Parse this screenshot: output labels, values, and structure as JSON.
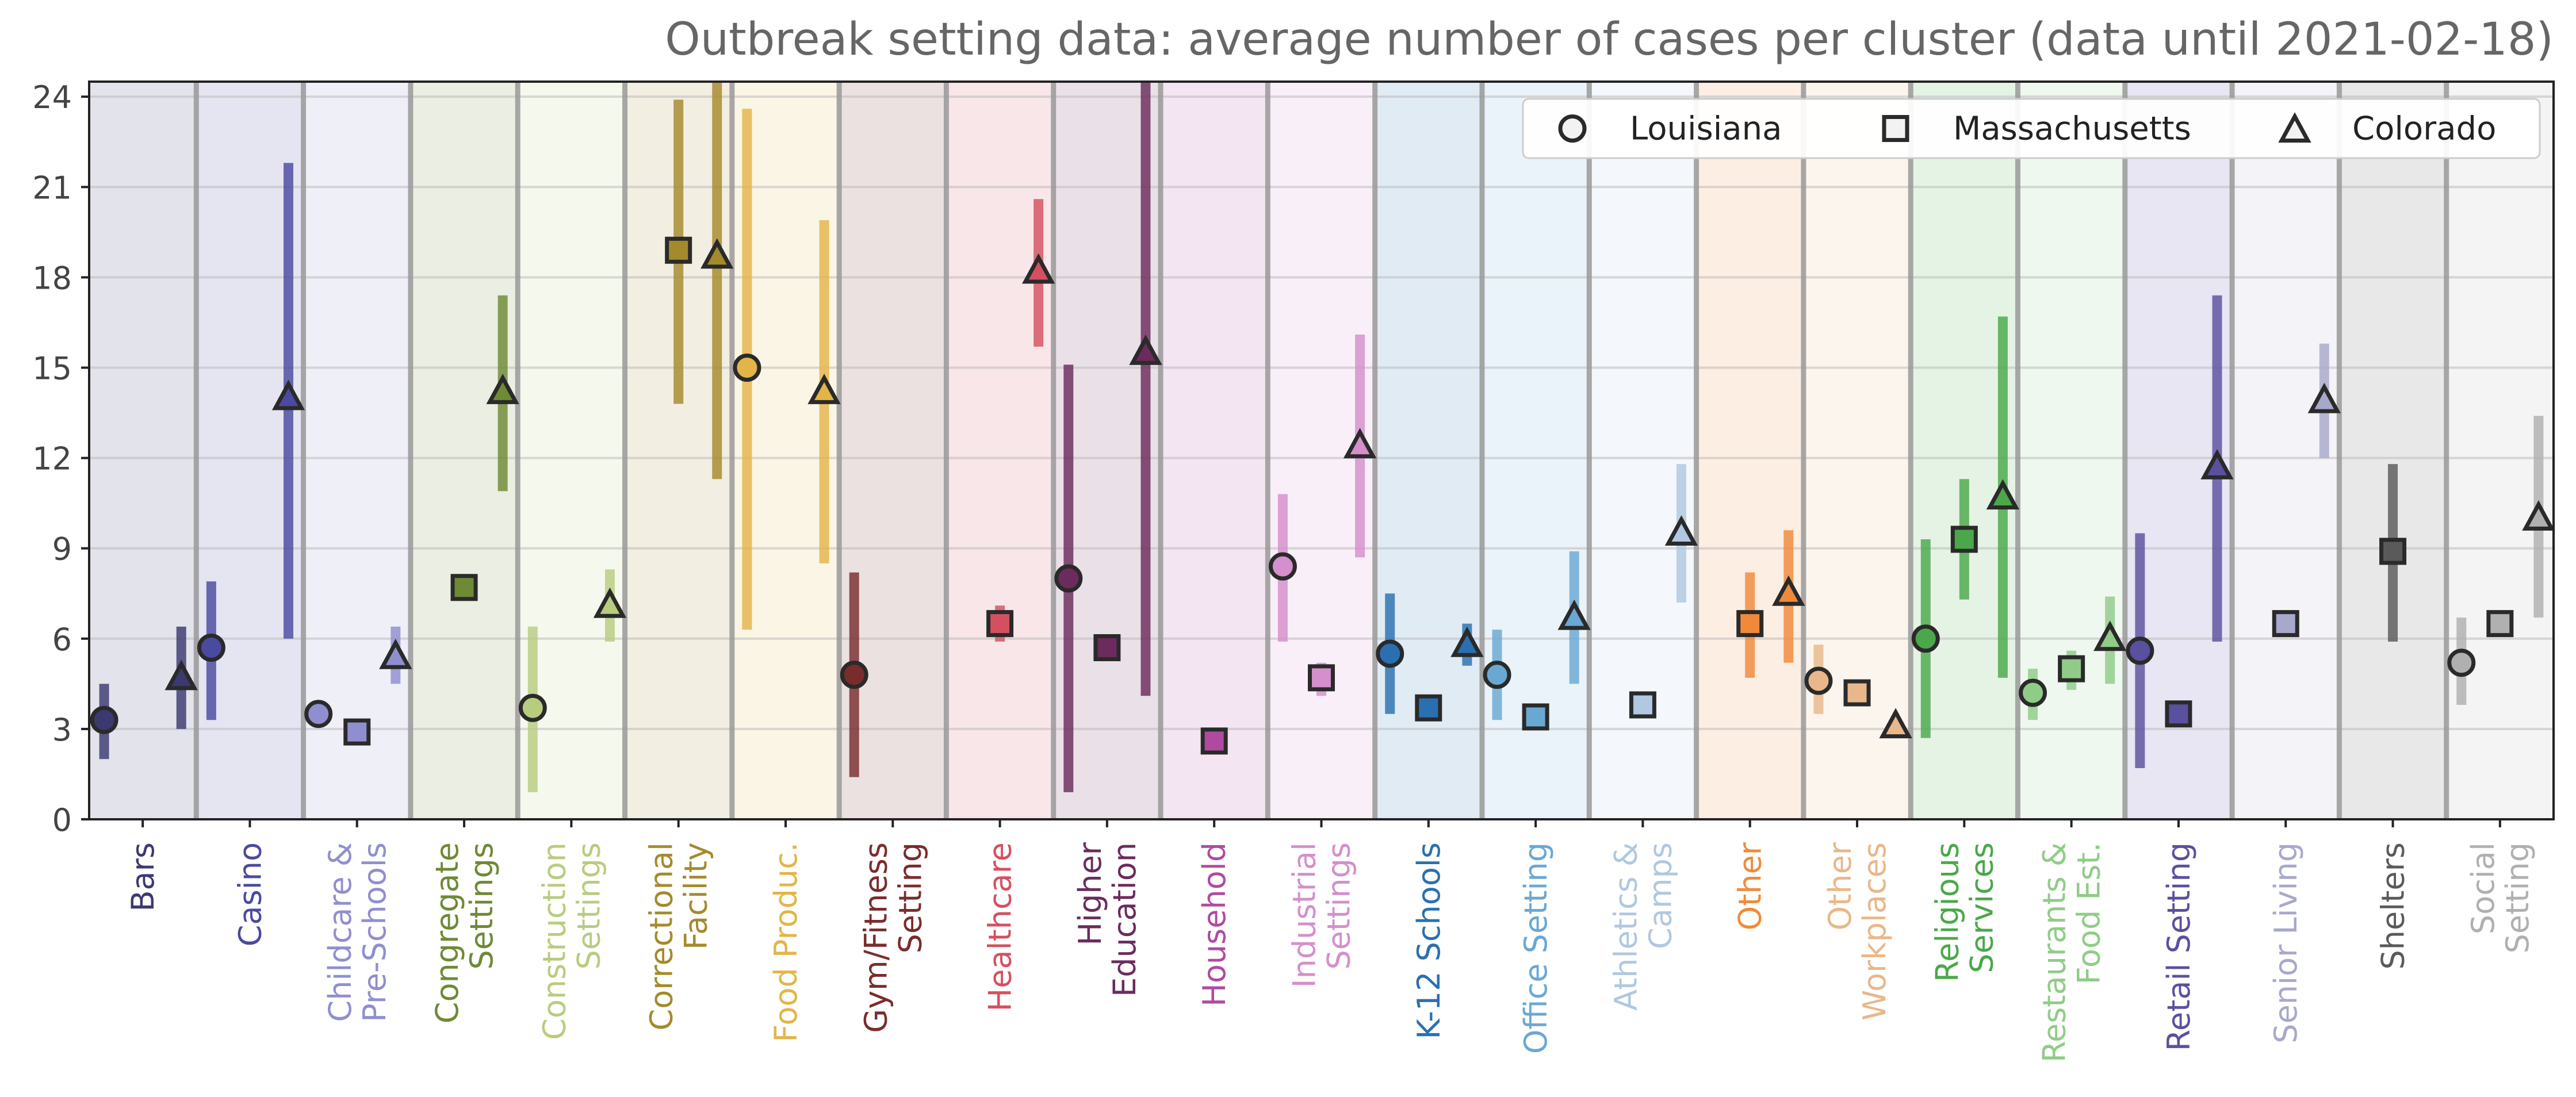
{
  "chart_data": {
    "type": "scatter",
    "title": "Outbreak setting data: average number of cases per cluster (data until 2021-02-18)",
    "ylim": [
      0,
      24.5
    ],
    "yticks": [
      0,
      3,
      6,
      9,
      12,
      15,
      18,
      21,
      24
    ],
    "grid": true,
    "legend_position": "top-right",
    "legend": [
      {
        "name": "Louisiana",
        "marker": "circle"
      },
      {
        "name": "Massachusetts",
        "marker": "square"
      },
      {
        "name": "Colorado",
        "marker": "triangle"
      }
    ],
    "categories": [
      {
        "label": "Bars",
        "color": "#3c3970"
      },
      {
        "label": "Casino",
        "color": "#4a4aa0"
      },
      {
        "label": "Childcare &\nPre-Schools",
        "color": "#8f8fd0"
      },
      {
        "label": "Congregate\nSettings",
        "color": "#6e8a35"
      },
      {
        "label": "Construction\nSettings",
        "color": "#b8cc80"
      },
      {
        "label": "Correctional\nFacility",
        "color": "#a58a2c"
      },
      {
        "label": "Food Produc.",
        "color": "#e3b548"
      },
      {
        "label": "Gym/Fitness\nSetting",
        "color": "#7a2c2c"
      },
      {
        "label": "Healthcare",
        "color": "#d45060"
      },
      {
        "label": "Higher\nEducation",
        "color": "#6b2b5c"
      },
      {
        "label": "Household",
        "color": "#b04aa0"
      },
      {
        "label": "Industrial\nSettings",
        "color": "#d48fcc"
      },
      {
        "label": "K-12 Schools",
        "color": "#2a70b0"
      },
      {
        "label": "Office Setting",
        "color": "#6aa8d4"
      },
      {
        "label": "Athletics &\nCamps",
        "color": "#b0c8e0"
      },
      {
        "label": "Other",
        "color": "#f08a3a"
      },
      {
        "label": "Other\nWorkplaces",
        "color": "#e8b88a"
      },
      {
        "label": "Religious\nServices",
        "color": "#4aa84a"
      },
      {
        "label": "Restaurants &\nFood Est.",
        "color": "#90cc88"
      },
      {
        "label": "Retail Setting",
        "color": "#5a50a0"
      },
      {
        "label": "Senior Living",
        "color": "#a8a8cc"
      },
      {
        "label": "Shelters",
        "color": "#5a5a5a"
      },
      {
        "label": "Social\nSetting",
        "color": "#b0b0b0"
      }
    ],
    "series": [
      {
        "name": "Louisiana",
        "marker": "circle",
        "points": [
          {
            "category": "Bars",
            "value": 3.3,
            "low": 2.0,
            "high": 4.5
          },
          {
            "category": "Casino",
            "value": 5.7,
            "low": 3.3,
            "high": 7.9
          },
          {
            "category": "Childcare &\nPre-Schools",
            "value": 3.5,
            "low": null,
            "high": null
          },
          {
            "category": "Construction\nSettings",
            "value": 3.7,
            "low": 0.9,
            "high": 6.4
          },
          {
            "category": "Food Produc.",
            "value": 15.0,
            "low": 6.3,
            "high": 23.6
          },
          {
            "category": "Gym/Fitness\nSetting",
            "value": 4.8,
            "low": 1.4,
            "high": 8.2
          },
          {
            "category": "Higher\nEducation",
            "value": 8.0,
            "low": 0.9,
            "high": 15.1
          },
          {
            "category": "Industrial\nSettings",
            "value": 8.4,
            "low": 5.9,
            "high": 10.8
          },
          {
            "category": "K-12 Schools",
            "value": 5.5,
            "low": 3.5,
            "high": 7.5
          },
          {
            "category": "Office Setting",
            "value": 4.8,
            "low": 3.3,
            "high": 6.3
          },
          {
            "category": "Other\nWorkplaces",
            "value": 4.6,
            "low": 3.5,
            "high": 5.8
          },
          {
            "category": "Religious\nServices",
            "value": 6.0,
            "low": 2.7,
            "high": 9.3
          },
          {
            "category": "Restaurants &\nFood Est.",
            "value": 4.2,
            "low": 3.3,
            "high": 5.0
          },
          {
            "category": "Retail Setting",
            "value": 5.6,
            "low": 1.7,
            "high": 9.5
          },
          {
            "category": "Social\nSetting",
            "value": 5.2,
            "low": 3.8,
            "high": 6.7
          }
        ]
      },
      {
        "name": "Massachusetts",
        "marker": "square",
        "points": [
          {
            "category": "Childcare &\nPre-Schools",
            "value": 2.9,
            "low": null,
            "high": null
          },
          {
            "category": "Congregate\nSettings",
            "value": 7.7,
            "low": null,
            "high": null
          },
          {
            "category": "Correctional\nFacility",
            "value": 18.9,
            "low": 13.8,
            "high": 23.9
          },
          {
            "category": "Healthcare",
            "value": 6.5,
            "low": 5.9,
            "high": 7.1
          },
          {
            "category": "Higher\nEducation",
            "value": 5.7,
            "low": null,
            "high": null
          },
          {
            "category": "Household",
            "value": 2.6,
            "low": null,
            "high": null
          },
          {
            "category": "Industrial\nSettings",
            "value": 4.7,
            "low": 4.1,
            "high": 5.2
          },
          {
            "category": "K-12 Schools",
            "value": 3.7,
            "low": null,
            "high": null
          },
          {
            "category": "Office Setting",
            "value": 3.4,
            "low": null,
            "high": null
          },
          {
            "category": "Athletics &\nCamps",
            "value": 3.8,
            "low": null,
            "high": null
          },
          {
            "category": "Other",
            "value": 6.5,
            "low": 4.7,
            "high": 8.2
          },
          {
            "category": "Other\nWorkplaces",
            "value": 4.2,
            "low": null,
            "high": null
          },
          {
            "category": "Religious\nServices",
            "value": 9.3,
            "low": 7.3,
            "high": 11.3
          },
          {
            "category": "Restaurants &\nFood Est.",
            "value": 5.0,
            "low": 4.3,
            "high": 5.6
          },
          {
            "category": "Retail Setting",
            "value": 3.5,
            "low": null,
            "high": null
          },
          {
            "category": "Senior Living",
            "value": 6.5,
            "low": null,
            "high": null
          },
          {
            "category": "Shelters",
            "value": 8.9,
            "low": 5.9,
            "high": 11.8
          },
          {
            "category": "Social\nSetting",
            "value": 6.5,
            "low": null,
            "high": null
          }
        ]
      },
      {
        "name": "Colorado",
        "marker": "triangle",
        "points": [
          {
            "category": "Bars",
            "value": 4.7,
            "low": 3.0,
            "high": 6.4
          },
          {
            "category": "Casino",
            "value": 14.0,
            "low": 6.0,
            "high": 21.8
          },
          {
            "category": "Childcare &\nPre-Schools",
            "value": 5.4,
            "low": 4.5,
            "high": 6.4
          },
          {
            "category": "Congregate\nSettings",
            "value": 14.2,
            "low": 10.9,
            "high": 17.4
          },
          {
            "category": "Construction\nSettings",
            "value": 7.1,
            "low": 5.9,
            "high": 8.3
          },
          {
            "category": "Correctional\nFacility",
            "value": 18.7,
            "low": 11.3,
            "high": 24.5
          },
          {
            "category": "Food Produc.",
            "value": 14.2,
            "low": 8.5,
            "high": 19.9
          },
          {
            "category": "Healthcare",
            "value": 18.2,
            "low": 15.7,
            "high": 20.6
          },
          {
            "category": "Higher\nEducation",
            "value": 15.5,
            "low": 4.1,
            "high": 24.5
          },
          {
            "category": "Industrial\nSettings",
            "value": 12.4,
            "low": 8.7,
            "high": 16.1
          },
          {
            "category": "K-12 Schools",
            "value": 5.8,
            "low": 5.1,
            "high": 6.5
          },
          {
            "category": "Office Setting",
            "value": 6.7,
            "low": 4.5,
            "high": 8.9
          },
          {
            "category": "Athletics &\nCamps",
            "value": 9.5,
            "low": 7.2,
            "high": 11.8
          },
          {
            "category": "Other",
            "value": 7.5,
            "low": 5.2,
            "high": 9.6
          },
          {
            "category": "Other\nWorkplaces",
            "value": 3.1,
            "low": null,
            "high": null
          },
          {
            "category": "Religious\nServices",
            "value": 10.7,
            "low": 4.7,
            "high": 16.7
          },
          {
            "category": "Restaurants &\nFood Est.",
            "value": 6.0,
            "low": 4.5,
            "high": 7.4
          },
          {
            "category": "Retail Setting",
            "value": 11.7,
            "low": 5.9,
            "high": 17.4
          },
          {
            "category": "Senior Living",
            "value": 13.9,
            "low": 12.0,
            "high": 15.8
          },
          {
            "category": "Social\nSetting",
            "value": 10.0,
            "low": 6.7,
            "high": 13.4
          }
        ]
      }
    ]
  }
}
